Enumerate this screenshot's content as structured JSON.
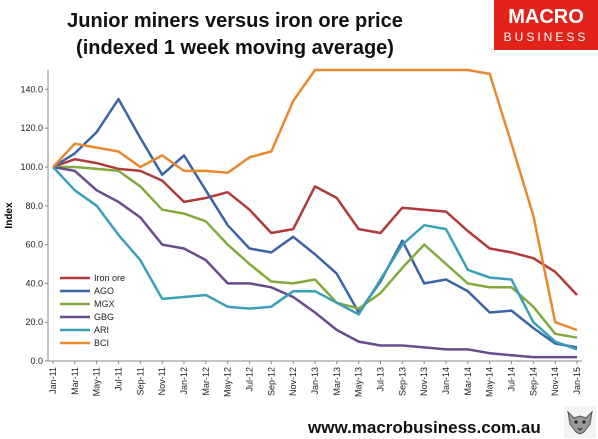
{
  "title_line1": "Junior miners versus iron ore price",
  "title_line2": "(indexed 1 week moving average)",
  "logo_line1": "MACRO",
  "logo_line2": "BUSINESS",
  "footer_url": "www.macrobusiness.com.au",
  "chart_data": {
    "type": "line",
    "ylabel": "Index",
    "ylim": [
      0,
      150
    ],
    "yticks": [
      "0.0",
      "20.0",
      "40.0",
      "60.0",
      "80.0",
      "100.0",
      "120.0",
      "140.0"
    ],
    "x": [
      "Jan-11",
      "Mar-11",
      "May-11",
      "Jul-11",
      "Sep-11",
      "Nov-11",
      "Jan-12",
      "Mar-12",
      "May-12",
      "Jul-12",
      "Sep-12",
      "Nov-12",
      "Jan-13",
      "Mar-13",
      "May-13",
      "Jul-13",
      "Sep-13",
      "Nov-13",
      "Jan-14",
      "Mar-14",
      "May-14",
      "Jul-14",
      "Sep-14",
      "Nov-14",
      "Jan-15"
    ],
    "legend_position": "bottom-left",
    "series": [
      {
        "name": "Iron ore",
        "color": "#b03a3a",
        "values": [
          100,
          104,
          102,
          99,
          98,
          93,
          82,
          84,
          87,
          78,
          66,
          68,
          90,
          84,
          68,
          66,
          79,
          78,
          77,
          67,
          58,
          56,
          53,
          46,
          34
        ]
      },
      {
        "name": "AGO",
        "color": "#3b64a8",
        "values": [
          100,
          107,
          118,
          135,
          115,
          96,
          106,
          88,
          70,
          58,
          56,
          64,
          55,
          45,
          25,
          41,
          62,
          40,
          42,
          36,
          25,
          26,
          17,
          9,
          7
        ]
      },
      {
        "name": "MGX",
        "color": "#84a93d",
        "values": [
          100,
          100,
          99,
          98,
          90,
          78,
          76,
          72,
          60,
          50,
          41,
          40,
          42,
          30,
          27,
          35,
          48,
          60,
          50,
          40,
          38,
          38,
          28,
          14,
          12
        ]
      },
      {
        "name": "GBG",
        "color": "#6a4b8e",
        "values": [
          100,
          98,
          88,
          82,
          74,
          60,
          58,
          52,
          40,
          40,
          38,
          33,
          25,
          16,
          10,
          8,
          8,
          7,
          6,
          6,
          4,
          3,
          2,
          2,
          2
        ]
      },
      {
        "name": "ARI",
        "color": "#3aa0b8",
        "values": [
          100,
          88,
          80,
          65,
          52,
          32,
          33,
          34,
          28,
          27,
          28,
          36,
          36,
          30,
          24,
          42,
          60,
          70,
          68,
          47,
          43,
          42,
          20,
          10,
          6
        ]
      },
      {
        "name": "BCI",
        "color": "#e8892f",
        "values": [
          100,
          112,
          110,
          108,
          100,
          106,
          98,
          98,
          97,
          105,
          108,
          134,
          152,
          152,
          152,
          152,
          152,
          152,
          152,
          152,
          148,
          112,
          75,
          20,
          16
        ]
      }
    ]
  }
}
